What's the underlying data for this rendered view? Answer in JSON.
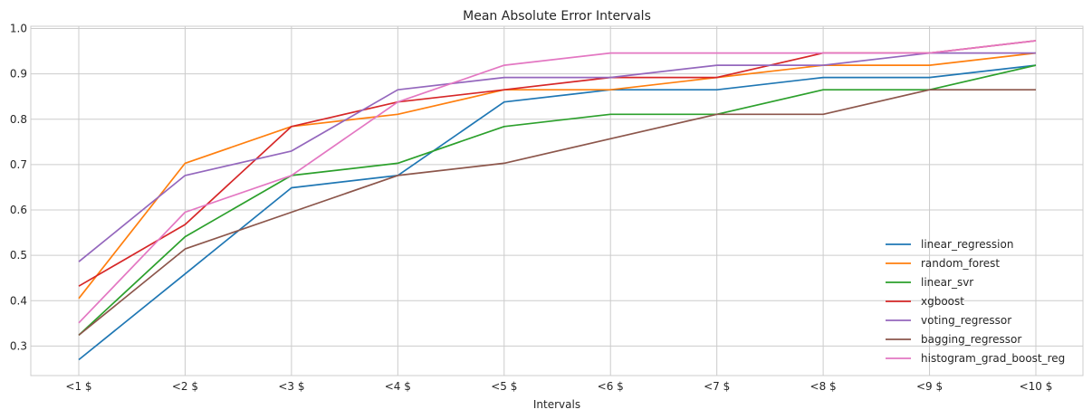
{
  "chart_data": {
    "type": "line",
    "title": "Mean Absolute Error Intervals",
    "xlabel": "Intervals",
    "ylabel": "",
    "categories": [
      "<1 $",
      "<2 $",
      "<3 $",
      "<4 $",
      "<5 $",
      "<6 $",
      "<7 $",
      "<8 $",
      "<9 $",
      "<10 $"
    ],
    "ylim": [
      0.235,
      1.005
    ],
    "yticks": [
      0.3,
      0.4,
      0.5,
      0.6,
      0.7,
      0.8,
      0.9,
      1.0
    ],
    "ytick_labels": [
      "0.3",
      "0.4",
      "0.5",
      "0.6",
      "0.7",
      "0.8",
      "0.9",
      "1.0"
    ],
    "grid": true,
    "legend_position": "lower-right",
    "series": [
      {
        "name": "linear_regression",
        "color": "#1f77b4",
        "values": [
          0.27,
          0.459,
          0.649,
          0.676,
          0.838,
          0.865,
          0.865,
          0.892,
          0.892,
          0.919
        ]
      },
      {
        "name": "random_forest",
        "color": "#ff7f0e",
        "values": [
          0.405,
          0.703,
          0.784,
          0.811,
          0.865,
          0.865,
          0.892,
          0.919,
          0.919,
          0.946
        ]
      },
      {
        "name": "linear_svr",
        "color": "#2ca02c",
        "values": [
          0.324,
          0.541,
          0.676,
          0.703,
          0.784,
          0.811,
          0.811,
          0.865,
          0.865,
          0.919
        ]
      },
      {
        "name": "xgboost",
        "color": "#d62728",
        "values": [
          0.432,
          0.568,
          0.784,
          0.838,
          0.865,
          0.892,
          0.892,
          0.946,
          0.946,
          0.973
        ]
      },
      {
        "name": "voting_regressor",
        "color": "#9467bd",
        "values": [
          0.486,
          0.676,
          0.73,
          0.865,
          0.892,
          0.892,
          0.919,
          0.919,
          0.946,
          0.946
        ]
      },
      {
        "name": "bagging_regressor",
        "color": "#8c564b",
        "values": [
          0.324,
          0.514,
          0.595,
          0.676,
          0.703,
          0.757,
          0.811,
          0.811,
          0.865,
          0.865
        ]
      },
      {
        "name": "histogram_grad_boost_reg",
        "color": "#e377c2",
        "values": [
          0.351,
          0.595,
          0.676,
          0.838,
          0.919,
          0.946,
          0.946,
          0.946,
          0.946,
          0.973
        ]
      }
    ]
  }
}
